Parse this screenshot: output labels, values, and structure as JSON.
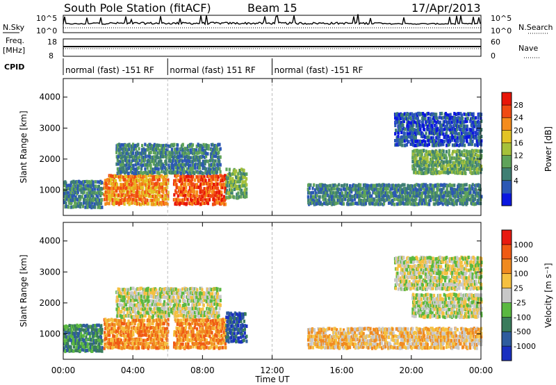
{
  "header": {
    "title": "South Pole Station (fitACF)",
    "beam": "Beam 15",
    "date": "17/Apr/2013"
  },
  "top_panels": {
    "nsky_label": "N.Sky",
    "nsearch_label": "N.Search",
    "freq_label": "Freq.",
    "freq_unit": "[MHz]",
    "nave_label": "Nave",
    "cpid_label": "CPID",
    "noise_ticks": [
      "10^5",
      "10^0"
    ],
    "freq_ticks": [
      "18",
      "8"
    ],
    "nave_ticks": [
      "60",
      "0"
    ]
  },
  "cpid_segments": [
    {
      "label": "normal (fast) -151 RF",
      "start_hour": 0,
      "end_hour": 6
    },
    {
      "label": "normal (fast) 151 RF",
      "start_hour": 6,
      "end_hour": 12
    },
    {
      "label": "normal (fast) -151 RF",
      "start_hour": 12,
      "end_hour": 24
    }
  ],
  "chart_data": [
    {
      "type": "heatmap",
      "name": "power",
      "ylabel": "Slant Range [km]",
      "xlabel": "Time UT",
      "x_ticks": [
        "00:00",
        "04:00",
        "08:00",
        "12:00",
        "16:00",
        "20:00",
        "00:00"
      ],
      "xlim_hours": [
        0,
        24
      ],
      "y_ticks": [
        1000,
        2000,
        3000,
        4000
      ],
      "ylim": [
        180,
        4600
      ],
      "colorbar": {
        "label": "Power [dB]",
        "ticks": [
          "28",
          "24",
          "20",
          "16",
          "12",
          "8",
          "4"
        ],
        "colors": [
          "#0b17e0",
          "#2c58b5",
          "#3f7f74",
          "#5fa35a",
          "#a6c13a",
          "#e2c325",
          "#f58c1c",
          "#f04a12",
          "#e81508"
        ]
      },
      "regions": [
        {
          "t0": 0.0,
          "t1": 2.2,
          "r0": 400,
          "r1": 1300,
          "level": 2
        },
        {
          "t0": 2.3,
          "t1": 6.0,
          "r0": 500,
          "r1": 1500,
          "level": 6
        },
        {
          "t0": 6.3,
          "t1": 9.3,
          "r0": 500,
          "r1": 1500,
          "level": 7
        },
        {
          "t0": 9.3,
          "t1": 10.5,
          "r0": 700,
          "r1": 1700,
          "level": 3
        },
        {
          "t0": 14.0,
          "t1": 24.0,
          "r0": 500,
          "r1": 1200,
          "level": 2
        },
        {
          "t0": 20.0,
          "t1": 24.0,
          "r0": 1500,
          "r1": 2300,
          "level": 3
        },
        {
          "t0": 3.0,
          "t1": 9.0,
          "r0": 1500,
          "r1": 2500,
          "level": 2
        },
        {
          "t0": 19.0,
          "t1": 24.0,
          "r0": 2400,
          "r1": 3500,
          "level": 1
        }
      ]
    },
    {
      "type": "heatmap",
      "name": "velocity",
      "ylabel": "Slant Range [km]",
      "xlabel": "Time UT",
      "x_ticks": [
        "00:00",
        "04:00",
        "08:00",
        "12:00",
        "16:00",
        "20:00",
        "00:00"
      ],
      "xlim_hours": [
        0,
        24
      ],
      "y_ticks": [
        1000,
        2000,
        3000,
        4000
      ],
      "ylim": [
        180,
        4600
      ],
      "colorbar": {
        "label": "Velocity [m s⁻¹]",
        "ticks": [
          "1000",
          "500",
          "100",
          "25",
          "-25",
          "-100",
          "-500",
          "-1000"
        ],
        "colors": [
          "#1a2fc0",
          "#2f5c9e",
          "#3a7c5c",
          "#5ab840",
          "#c8c8c8",
          "#f5c040",
          "#f08a20",
          "#f05a14",
          "#e81a10"
        ]
      },
      "regions": [
        {
          "t0": 0.0,
          "t1": 2.2,
          "r0": 400,
          "r1": 1300,
          "level": 2
        },
        {
          "t0": 2.3,
          "t1": 6.0,
          "r0": 500,
          "r1": 1500,
          "level": 6
        },
        {
          "t0": 6.3,
          "t1": 9.3,
          "r0": 500,
          "r1": 1500,
          "level": 6
        },
        {
          "t0": 9.3,
          "t1": 10.5,
          "r0": 700,
          "r1": 1700,
          "level": 1
        },
        {
          "t0": 14.0,
          "t1": 24.0,
          "r0": 500,
          "r1": 1200,
          "level": 5
        },
        {
          "t0": 20.0,
          "t1": 24.0,
          "r0": 1500,
          "r1": 2300,
          "level": 4
        },
        {
          "t0": 3.0,
          "t1": 9.0,
          "r0": 1500,
          "r1": 2500,
          "level": 4
        },
        {
          "t0": 19.0,
          "t1": 24.0,
          "r0": 2400,
          "r1": 3500,
          "level": 4
        }
      ]
    }
  ]
}
